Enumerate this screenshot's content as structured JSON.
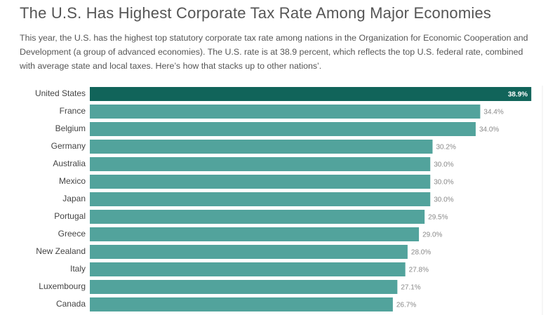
{
  "chart_data": {
    "type": "bar",
    "orientation": "horizontal",
    "title": "The U.S. Has Highest Corporate Tax Rate Among Major Economies",
    "subtitle": "This year, the U.S. has the highest top statutory corporate tax rate among nations in the Organization for Economic Cooperation and Development (a group of advanced economies). The U.S. rate is at 38.9 percent, which reflects the top U.S. federal rate, combined with average state and local taxes. Here’s how that stacks up to other nations’.",
    "categories": [
      "United States",
      "France",
      "Belgium",
      "Germany",
      "Australia",
      "Mexico",
      "Japan",
      "Portugal",
      "Greece",
      "New Zealand",
      "Italy",
      "Luxembourg",
      "Canada"
    ],
    "values": [
      38.9,
      34.4,
      34.0,
      30.2,
      30.0,
      30.0,
      30.0,
      29.5,
      29.0,
      28.0,
      27.8,
      27.1,
      26.7
    ],
    "value_labels": [
      "38.9%",
      "34.4%",
      "34.0%",
      "30.2%",
      "30.0%",
      "30.0%",
      "30.0%",
      "29.5%",
      "29.0%",
      "28.0%",
      "27.8%",
      "27.1%",
      "26.7%"
    ],
    "colors": [
      "#11645a",
      "#52a39c",
      "#52a39c",
      "#52a39c",
      "#52a39c",
      "#52a39c",
      "#52a39c",
      "#52a39c",
      "#52a39c",
      "#52a39c",
      "#52a39c",
      "#52a39c",
      "#52a39c"
    ],
    "xlim": [
      0,
      40
    ]
  }
}
